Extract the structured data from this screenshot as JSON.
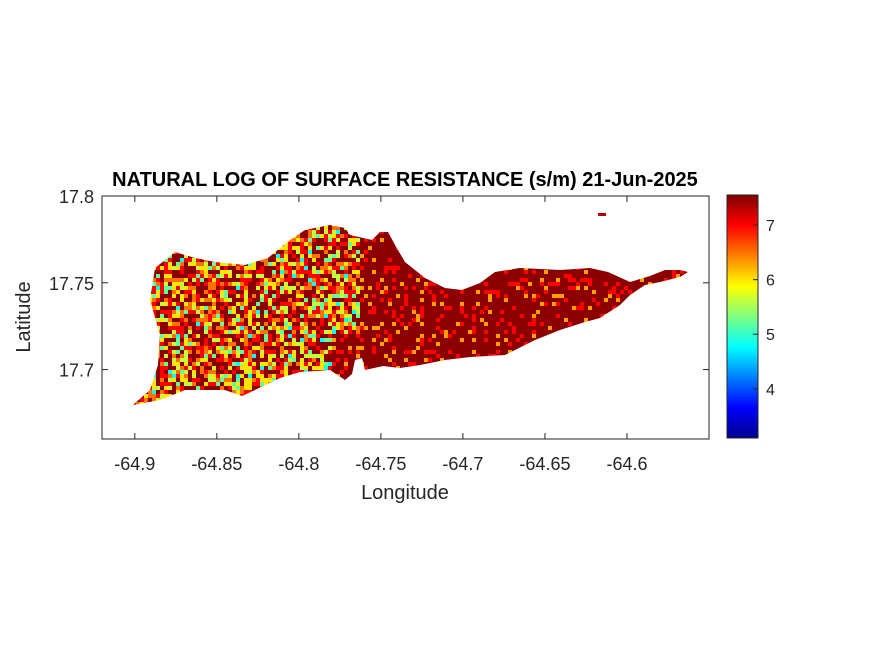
{
  "chart_data": {
    "type": "heatmap",
    "title": "NATURAL LOG OF SURFACE RESISTANCE (s/m) 21-Jun-2025",
    "xlabel": "Longitude",
    "ylabel": "Latitude",
    "xlim": [
      -64.92,
      -64.55
    ],
    "ylim": [
      17.66,
      17.8
    ],
    "xticks": [
      -64.9,
      -64.85,
      -64.8,
      -64.75,
      -64.7,
      -64.65,
      -64.6
    ],
    "xtick_labels": [
      "-64.9",
      "-64.85",
      "-64.8",
      "-64.75",
      "-64.7",
      "-64.65",
      "-64.6"
    ],
    "yticks": [
      17.7,
      17.75,
      17.8
    ],
    "ytick_labels": [
      "17.7",
      "17.75",
      "17.8"
    ],
    "colorbar": {
      "range": [
        3.1,
        7.55
      ],
      "ticks": [
        4,
        5,
        6,
        7
      ],
      "tick_labels": [
        "4",
        "5",
        "6",
        "7"
      ],
      "colormap": "jet"
    },
    "regions": [
      {
        "lon_range": [
          -64.9,
          -64.765
        ],
        "typical_value": 6.4,
        "description_values": [
          5.2,
          7.5
        ]
      },
      {
        "lon_range": [
          -64.765,
          -64.56
        ],
        "typical_value": 7.4,
        "description_values": [
          6.8,
          7.5
        ]
      }
    ],
    "grid": false,
    "legend": "colorbar-right"
  }
}
